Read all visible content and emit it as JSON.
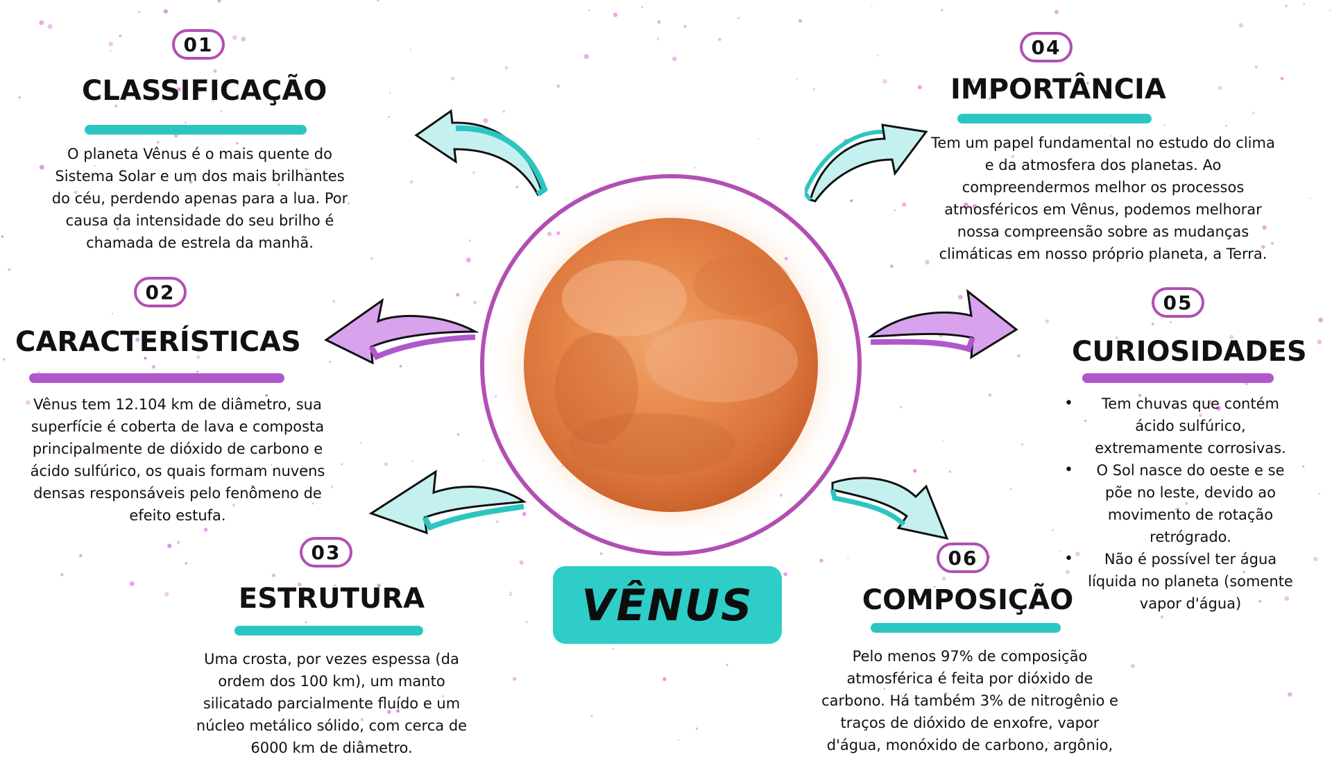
{
  "center": {
    "label": "VÊNUS"
  },
  "sections": {
    "s01": {
      "number": "01",
      "title": "CLASSIFICAÇÃO",
      "text": "O planeta Vênus é o mais quente do Sistema Solar e um dos mais brilhantes do céu, perdendo apenas para a lua. Por causa da intensidade do seu brilho é chamada de estrela da manhã."
    },
    "s02": {
      "number": "02",
      "title": "CARACTERÍSTICAS",
      "text": "Vênus tem 12.104 km de diâmetro, sua superfície é coberta de lava e composta principalmente de dióxido de carbono e ácido sulfúrico, os quais formam nuvens densas responsáveis pelo fenômeno de efeito estufa."
    },
    "s03": {
      "number": "03",
      "title": "ESTRUTURA",
      "text": "Uma crosta, por vezes espessa (da ordem dos 100 km), um manto silicatado parcialmente fluído e um núcleo metálico sólido, com cerca de 6000 km de diâmetro."
    },
    "s04": {
      "number": "04",
      "title": "IMPORTÂNCIA",
      "text": "Tem um papel fundamental no estudo do clima e da atmosfera dos planetas. Ao compreendermos melhor os processos atmosféricos em Vênus, podemos melhorar nossa compreensão sobre as mudanças climáticas em nosso próprio planeta, a Terra."
    },
    "s05": {
      "number": "05",
      "title": "CURIOSIDADES",
      "bullets": [
        "Tem chuvas que contém ácido sulfúrico, extremamente corrosivas.",
        "O Sol nasce do oeste e se põe no leste, devido ao movimento de rotação retrógrado.",
        "Não é possível ter água líquida no planeta (somente vapor d'água)"
      ]
    },
    "s06": {
      "number": "06",
      "title": "COMPOSIÇÃO",
      "text": "Pelo menos 97% de composição atmosférica é feita por dióxido de carbono. Há também 3% de nitrogênio e traços de dióxido de enxofre, vapor d'água, monóxido de carbono, argônio,"
    }
  },
  "colors": {
    "teal": "#2cc6c2",
    "purple": "#b057cc",
    "ring": "#b24fb3",
    "planet": "#e8874a"
  }
}
